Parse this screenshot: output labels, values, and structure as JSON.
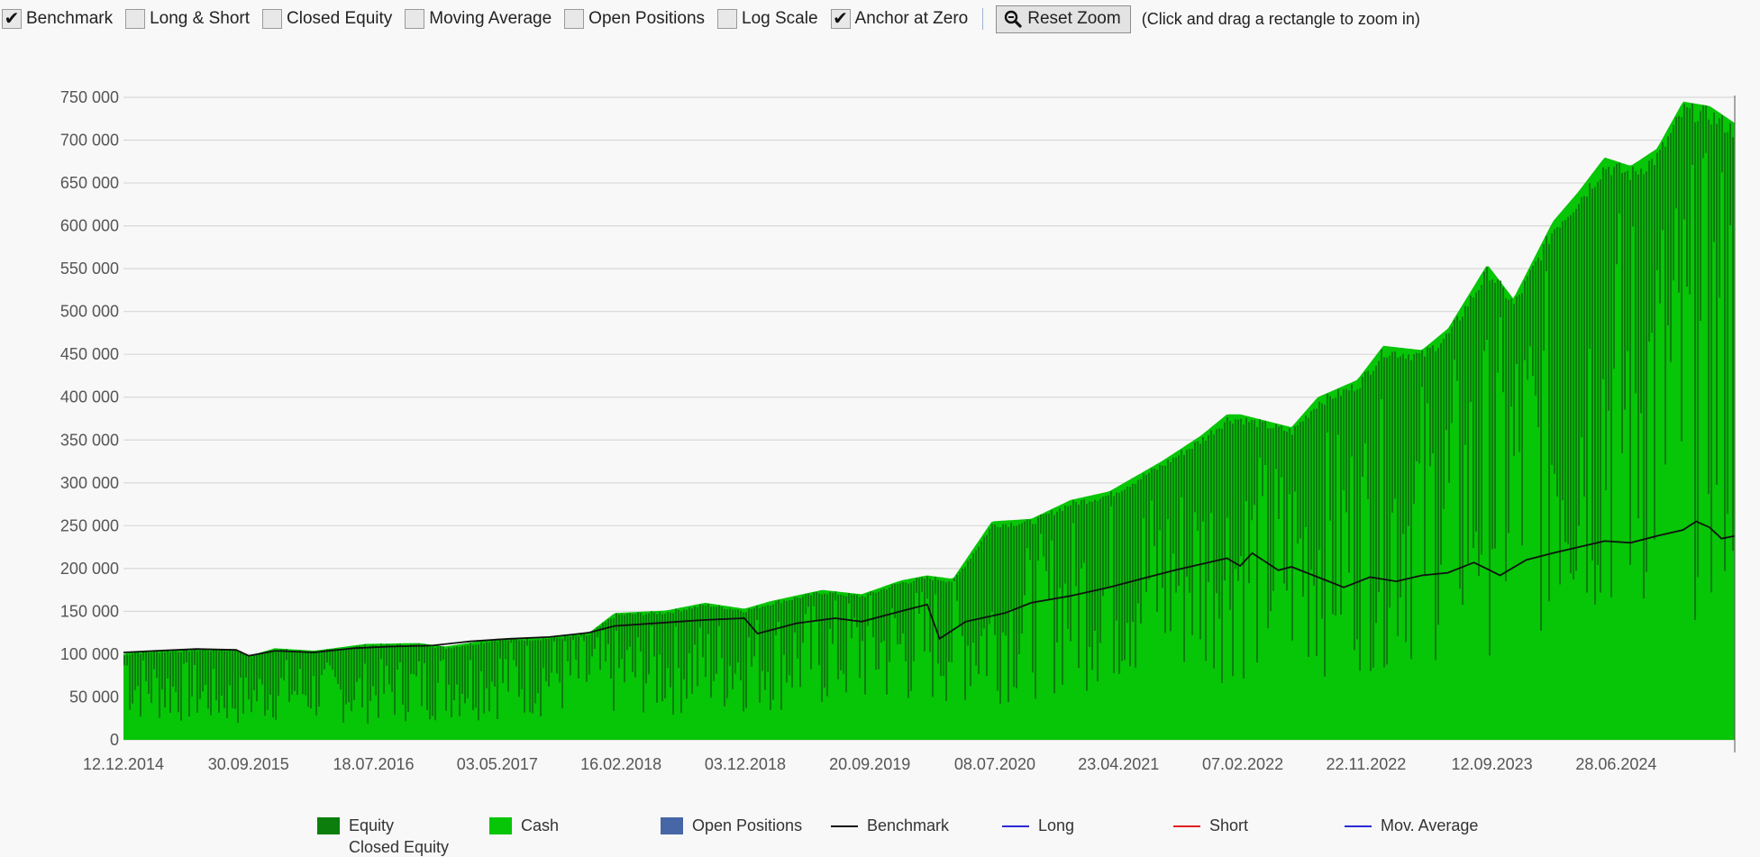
{
  "toolbar": {
    "checkboxes": [
      {
        "label": "Benchmark",
        "checked": true
      },
      {
        "label": "Long & Short",
        "checked": false
      },
      {
        "label": "Closed Equity",
        "checked": false
      },
      {
        "label": "Moving Average",
        "checked": false
      },
      {
        "label": "Open Positions",
        "checked": false
      },
      {
        "label": "Log Scale",
        "checked": false
      },
      {
        "label": "Anchor at Zero",
        "checked": true
      }
    ],
    "reset_zoom_label": "Reset Zoom",
    "hint": "(Click and drag a rectangle to zoom in)"
  },
  "legend": [
    {
      "label": "Equity",
      "kind": "swatch",
      "color": "#0c7e0c"
    },
    {
      "label": "Cash",
      "kind": "swatch",
      "color": "#07c507"
    },
    {
      "label": "Open Positions",
      "kind": "swatch",
      "color": "#4766a6"
    },
    {
      "label": "Benchmark",
      "kind": "line",
      "color": "#111111"
    },
    {
      "label": "Long",
      "kind": "line",
      "color": "#2a2ad8"
    },
    {
      "label": "Short",
      "kind": "line",
      "color": "#e02020"
    },
    {
      "label": "Mov. Average",
      "kind": "line",
      "color": "#2a2ad8"
    },
    {
      "label": "Closed Equity",
      "kind": "text",
      "color": "#333333"
    }
  ],
  "chart_data": {
    "type": "area",
    "x_tick_labels": [
      "12.12.2014",
      "30.09.2015",
      "18.07.2016",
      "03.05.2017",
      "16.02.2018",
      "03.12.2018",
      "20.09.2019",
      "08.07.2020",
      "23.04.2021",
      "07.02.2022",
      "22.11.2022",
      "12.09.2023",
      "28.06.2024"
    ],
    "y_tick_labels": [
      "0",
      "50 000",
      "100 000",
      "150 000",
      "200 000",
      "250 000",
      "300 000",
      "350 000",
      "400 000",
      "450 000",
      "500 000",
      "550 000",
      "600 000",
      "650 000",
      "700 000",
      "750 000"
    ],
    "ylim": [
      0,
      750000
    ],
    "x_range": [
      "12.12.2014",
      "04.2025"
    ],
    "grid": "horizontal",
    "colors": {
      "equity": "#0c7e0c",
      "cash": "#07c507",
      "benchmark": "#111111",
      "grid": "#d8d8d8"
    },
    "series": [
      {
        "name": "Equity",
        "x": [
          "12.12.2014",
          "01.2015",
          "06.2015",
          "09.2015",
          "10.2015",
          "12.2015",
          "03.2016",
          "07.2016",
          "11.2016",
          "01.2017",
          "05.2017",
          "09.2017",
          "12.2017",
          "02.2018",
          "06.2018",
          "09.2018",
          "12.2018",
          "02.2019",
          "06.2019",
          "09.2019",
          "12.2019",
          "02.2020",
          "04.2020",
          "07.2020",
          "10.2020",
          "01.2021",
          "04.2021",
          "08.2021",
          "11.2021",
          "01.2022",
          "02.2022",
          "06.2022",
          "08.2022",
          "11.2022",
          "01.2023",
          "04.2023",
          "06.2023",
          "09.2023",
          "11.2023",
          "02.2024",
          "04.2024",
          "06.2024",
          "08.2024",
          "10.2024",
          "12.2024",
          "02.2025",
          "04.2025"
        ],
        "values": [
          100000,
          103000,
          106000,
          106000,
          98000,
          107000,
          104000,
          112000,
          113000,
          109000,
          118000,
          120000,
          124000,
          148000,
          151000,
          160000,
          153000,
          162000,
          175000,
          170000,
          186000,
          192000,
          188000,
          255000,
          258000,
          280000,
          290000,
          325000,
          355000,
          380000,
          380000,
          365000,
          400000,
          420000,
          460000,
          455000,
          480000,
          555000,
          515000,
          605000,
          640000,
          680000,
          670000,
          690000,
          745000,
          740000,
          720000
        ]
      },
      {
        "name": "Cash",
        "x": [
          "12.12.2014",
          "01.2015",
          "06.2015",
          "09.2015",
          "12.2015",
          "06.2016",
          "12.2016",
          "06.2017",
          "12.2017",
          "06.2018",
          "12.2018",
          "06.2019",
          "12.2019",
          "06.2020",
          "12.2020",
          "06.2021",
          "12.2021",
          "06.2022",
          "12.2022",
          "06.2023",
          "12.2023",
          "06.2024",
          "12.2024",
          "04.2025"
        ],
        "values": [
          98000,
          70000,
          60000,
          50000,
          65000,
          60000,
          70000,
          80000,
          85000,
          90000,
          100000,
          110000,
          120000,
          130000,
          170000,
          200000,
          220000,
          230000,
          260000,
          300000,
          350000,
          420000,
          450000,
          480000
        ]
      },
      {
        "name": "Benchmark",
        "x": [
          "12.12.2014",
          "03.2015",
          "06.2015",
          "09.2015",
          "10.2015",
          "12.2015",
          "03.2016",
          "06.2016",
          "09.2016",
          "12.2016",
          "03.2017",
          "06.2017",
          "09.2017",
          "12.2017",
          "02.2018",
          "06.2018",
          "09.2018",
          "12.2018",
          "01.2019",
          "04.2019",
          "07.2019",
          "09.2019",
          "12.2019",
          "02.2020",
          "03.2020",
          "05.2020",
          "08.2020",
          "10.2020",
          "01.2021",
          "04.2021",
          "07.2021",
          "09.2021",
          "11.2021",
          "01.2022",
          "02.2022",
          "03.2022",
          "05.2022",
          "06.2022",
          "08.2022",
          "09.2022",
          "10.2022",
          "12.2022",
          "02.2023",
          "04.2023",
          "06.2023",
          "08.2023",
          "10.2023",
          "12.2023",
          "02.2024",
          "04.2024",
          "06.2024",
          "08.2024",
          "10.2024",
          "12.2024",
          "01.2025",
          "02.2025",
          "03.2025",
          "04.2025"
        ],
        "values": [
          102000,
          104000,
          106000,
          105000,
          98000,
          104000,
          102000,
          107000,
          109000,
          110000,
          115000,
          118000,
          120000,
          125000,
          133000,
          137000,
          140000,
          142000,
          124000,
          136000,
          142000,
          138000,
          150000,
          158000,
          118000,
          138000,
          148000,
          160000,
          168000,
          178000,
          190000,
          198000,
          205000,
          212000,
          203000,
          218000,
          198000,
          202000,
          190000,
          184000,
          178000,
          190000,
          185000,
          192000,
          195000,
          207000,
          192000,
          210000,
          218000,
          225000,
          232000,
          230000,
          238000,
          245000,
          255000,
          248000,
          235000,
          238000
        ]
      }
    ]
  }
}
